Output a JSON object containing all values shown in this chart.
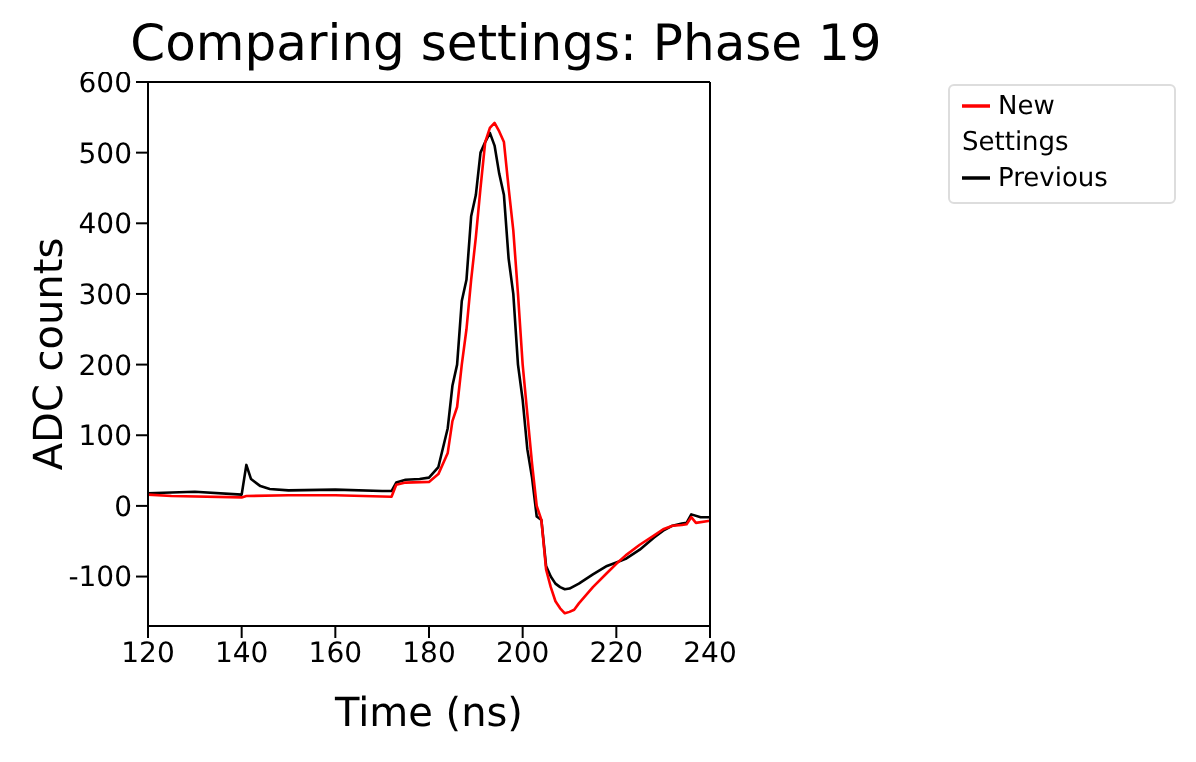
{
  "chart_data": {
    "type": "line",
    "title": "Comparing settings: Phase 19",
    "xlabel": "Time (ns)",
    "ylabel": "ADC counts",
    "xlim": [
      120,
      240
    ],
    "xticks": [
      120,
      140,
      160,
      180,
      200,
      220,
      240
    ],
    "ylim": [
      -170,
      600
    ],
    "yticks": [
      -100,
      0,
      100,
      200,
      300,
      400,
      500,
      600
    ],
    "grid": false,
    "legend": "top right",
    "marker": "none",
    "line_style": "solid",
    "series": [
      {
        "name": "Previous",
        "color": "#000000",
        "x": [
          120,
          130,
          140,
          141,
          142,
          144,
          146,
          150,
          160,
          170,
          172,
          173,
          175,
          178,
          180,
          182,
          184,
          185,
          186,
          187,
          188,
          189,
          190,
          191,
          192,
          193,
          194,
          195,
          196,
          197,
          198,
          199,
          200,
          201,
          202,
          203,
          204,
          205,
          206,
          207,
          208,
          209,
          210,
          212,
          215,
          218,
          220,
          222,
          225,
          228,
          230,
          232,
          234,
          235,
          236,
          238,
          240
        ],
        "values": [
          18,
          20,
          16,
          58,
          38,
          28,
          24,
          22,
          23,
          21,
          21,
          33,
          37,
          38,
          40,
          55,
          110,
          170,
          200,
          290,
          320,
          410,
          440,
          500,
          515,
          528,
          510,
          470,
          440,
          350,
          300,
          200,
          150,
          80,
          40,
          -15,
          -20,
          -85,
          -100,
          -110,
          -115,
          -118,
          -117,
          -110,
          -97,
          -85,
          -80,
          -75,
          -62,
          -45,
          -35,
          -28,
          -25,
          -24,
          -12,
          -16,
          -16
        ]
      },
      {
        "name": "New Settings",
        "color": "#ff0000",
        "x": [
          120,
          125,
          140,
          141,
          150,
          160,
          172,
          173,
          175,
          180,
          182,
          184,
          185,
          186,
          187,
          188,
          189,
          190,
          191,
          192,
          193,
          194,
          195,
          196,
          197,
          198,
          199,
          200,
          201,
          202,
          203,
          204,
          205,
          206,
          207,
          208,
          209,
          210,
          211,
          212,
          215,
          218,
          220,
          222,
          225,
          228,
          230,
          232,
          234,
          235,
          236,
          237,
          240
        ],
        "values": [
          16,
          14,
          12,
          14,
          15,
          15,
          13,
          30,
          33,
          34,
          45,
          75,
          120,
          140,
          200,
          250,
          320,
          380,
          450,
          515,
          535,
          542,
          530,
          515,
          450,
          390,
          300,
          200,
          130,
          60,
          0,
          -20,
          -90,
          -115,
          -135,
          -145,
          -152,
          -150,
          -147,
          -138,
          -115,
          -95,
          -82,
          -70,
          -55,
          -42,
          -33,
          -28,
          -27,
          -26,
          -16,
          -24,
          -21
        ]
      }
    ]
  }
}
